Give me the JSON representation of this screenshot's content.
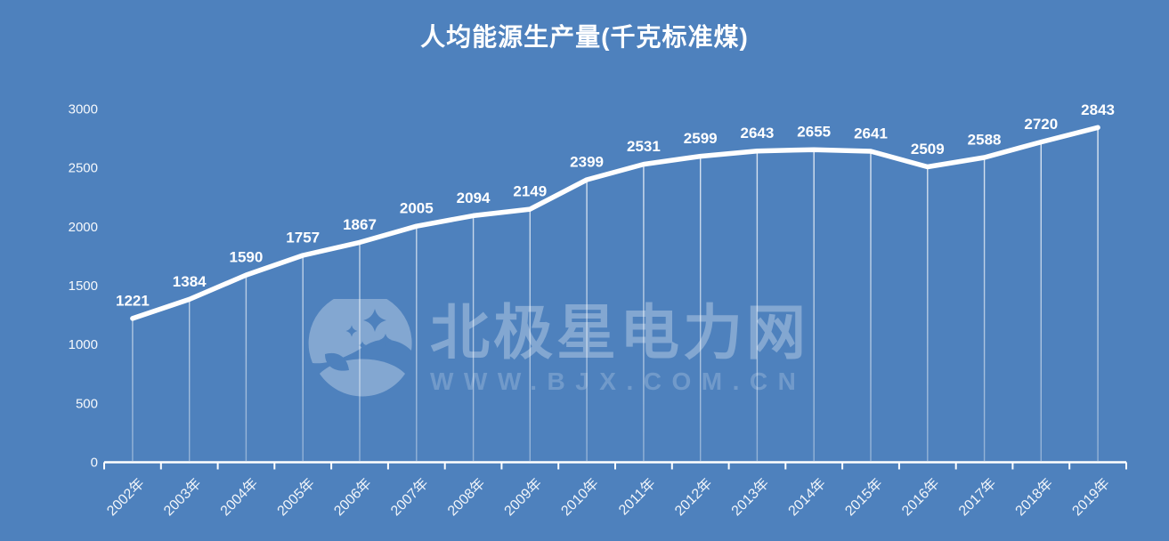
{
  "page": {
    "background": "#4E81BD"
  },
  "watermark": {
    "brand": "北极星电力网",
    "url": "WWW.BJX.COM.CN",
    "logo": "moon-stars-logo"
  },
  "chart_data": {
    "type": "line",
    "title": "人均能源生产量(千克标准煤)",
    "categories": [
      "2002年",
      "2003年",
      "2004年",
      "2005年",
      "2006年",
      "2007年",
      "2008年",
      "2009年",
      "2010年",
      "2011年",
      "2012年",
      "2013年",
      "2014年",
      "2015年",
      "2016年",
      "2017年",
      "2018年",
      "2019年"
    ],
    "values": [
      1221,
      1384,
      1590,
      1757,
      1867,
      2005,
      2094,
      2149,
      2399,
      2531,
      2599,
      2643,
      2655,
      2641,
      2509,
      2588,
      2720,
      2843
    ],
    "xlabel": "",
    "ylabel": "",
    "ylim": [
      0,
      3000
    ],
    "yticks": [
      0,
      500,
      1000,
      1500,
      2000,
      2500,
      3000
    ],
    "grid": false,
    "legend": "none",
    "line_color": "#FFFFFF",
    "label_color": "#FFFFFF",
    "axis_color": "#FFFFFF",
    "data_labels": "above",
    "drop_lines": true
  }
}
